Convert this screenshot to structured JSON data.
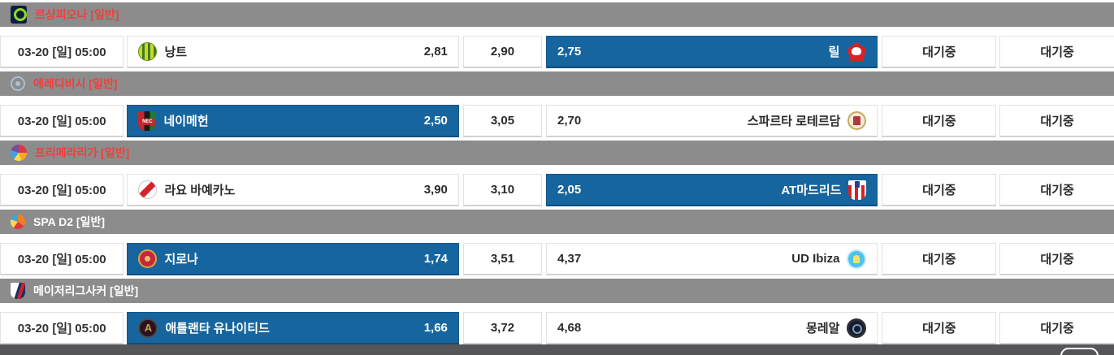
{
  "sections": [
    {
      "league": {
        "name": "르샹피오나 [일반]",
        "text_color": "#e8433f",
        "icon": "ligue1-icon"
      },
      "match": {
        "time": "03-20 [일] 05:00",
        "home": {
          "name": "낭트",
          "odds": "2,81",
          "selected": false,
          "icon": "nantes-crest"
        },
        "draw": {
          "odds": "2,90",
          "selected": false
        },
        "away": {
          "name": "릴",
          "odds": "2,75",
          "selected": true,
          "icon": "lille-crest"
        },
        "status_primary": "대기중",
        "status_secondary": "대기중"
      }
    },
    {
      "league": {
        "name": "에레디비시 [일반]",
        "text_color": "#e8433f",
        "icon": "eredivisie-icon"
      },
      "match": {
        "time": "03-20 [일] 05:00",
        "home": {
          "name": "네이메헌",
          "odds": "2,50",
          "selected": true,
          "icon": "nec-nijmegen-crest"
        },
        "draw": {
          "odds": "3,05",
          "selected": false
        },
        "away": {
          "name": "스파르타 로테르담",
          "odds": "2,70",
          "selected": false,
          "icon": "sparta-rotterdam-crest"
        },
        "status_primary": "대기중",
        "status_secondary": "대기중"
      }
    },
    {
      "league": {
        "name": "프리메라리가 [일반]",
        "text_color": "#e8433f",
        "icon": "laliga-icon"
      },
      "match": {
        "time": "03-20 [일] 05:00",
        "home": {
          "name": "라요 바예카노",
          "odds": "3,90",
          "selected": false,
          "icon": "rayo-vallecano-crest"
        },
        "draw": {
          "odds": "3,10",
          "selected": false
        },
        "away": {
          "name": "AT마드리드",
          "odds": "2,05",
          "selected": true,
          "icon": "atletico-madrid-crest"
        },
        "status_primary": "대기중",
        "status_secondary": "대기중"
      }
    },
    {
      "league": {
        "name": "SPA D2 [일반]",
        "text_color": "#ffffff",
        "icon": "laliga2-icon"
      },
      "match": {
        "time": "03-20 [일] 05:00",
        "home": {
          "name": "지로나",
          "odds": "1,74",
          "selected": true,
          "icon": "girona-crest"
        },
        "draw": {
          "odds": "3,51",
          "selected": false
        },
        "away": {
          "name": "UD Ibiza",
          "odds": "4,37",
          "selected": false,
          "icon": "ud-ibiza-crest"
        },
        "status_primary": "대기중",
        "status_secondary": "대기중"
      }
    },
    {
      "league": {
        "name": "메이저리그사커 [일반]",
        "text_color": "#ffffff",
        "icon": "mls-icon"
      },
      "match": {
        "time": "03-20 [일] 05:00",
        "home": {
          "name": "애틀랜타 유나이티드",
          "odds": "1,66",
          "selected": true,
          "icon": "atlanta-united-crest"
        },
        "draw": {
          "odds": "3,72",
          "selected": false
        },
        "away": {
          "name": "몽레알",
          "odds": "4,68",
          "selected": false,
          "icon": "montreal-crest"
        },
        "status_primary": "대기중",
        "status_secondary": "대기중"
      }
    }
  ],
  "colors": {
    "selected_cell": "#17659e",
    "league_bar": "#8c8c8c",
    "league_text_red": "#e8433f",
    "league_text_white": "#ffffff",
    "bottom_bar": "#565658"
  }
}
